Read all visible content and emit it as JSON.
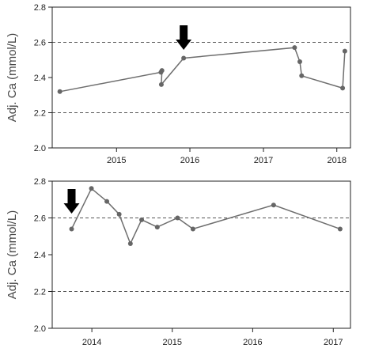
{
  "chart_data": [
    {
      "type": "line",
      "ylabel": "Adj. Ca (mmol/L)",
      "xlabel": "",
      "xlim": [
        "2014-02-15",
        "2018-03-10"
      ],
      "ylim": [
        2.0,
        2.8
      ],
      "x_ticks": [
        "2015-01-01",
        "2016-01-01",
        "2017-01-01",
        "2018-01-01"
      ],
      "x_tick_labels": [
        "2015",
        "2016",
        "2017",
        "2018"
      ],
      "y_ticks": [
        2.0,
        2.2,
        2.4,
        2.6,
        2.8
      ],
      "y_tick_labels": [
        "2.0",
        "2.2",
        "2.4",
        "2.6",
        "2.8"
      ],
      "reference_lines": [
        2.2,
        2.6
      ],
      "grid": false,
      "arrow_at": "2015-12-01",
      "series": [
        {
          "x": [
            "2014-03-25",
            "2015-08-10",
            "2015-08-15",
            "2015-08-12",
            "2015-12-01",
            "2017-06-05",
            "2017-07-01",
            "2017-07-10",
            "2018-01-30",
            "2018-02-10"
          ],
          "values": [
            2.32,
            2.43,
            2.44,
            2.36,
            2.51,
            2.57,
            2.49,
            2.41,
            2.34,
            2.55
          ]
        }
      ]
    },
    {
      "type": "line",
      "ylabel": "Adj. Ca (mmol/L)",
      "xlabel": "",
      "xlim": [
        "2013-07-05",
        "2017-03-20"
      ],
      "ylim": [
        2.0,
        2.8
      ],
      "x_ticks": [
        "2014-01-01",
        "2015-01-01",
        "2016-01-01",
        "2017-01-01"
      ],
      "x_tick_labels": [
        "2014",
        "2015",
        "2016",
        "2017"
      ],
      "y_ticks": [
        2.0,
        2.2,
        2.4,
        2.6,
        2.8
      ],
      "y_tick_labels": [
        "2.0",
        "2.2",
        "2.4",
        "2.6",
        "2.8"
      ],
      "reference_lines": [
        2.2,
        2.6
      ],
      "grid": false,
      "arrow_at": "2013-10-01",
      "series": [
        {
          "x": [
            "2013-10-01",
            "2013-12-30",
            "2014-03-10",
            "2014-05-05",
            "2014-06-25",
            "2014-08-15",
            "2014-10-25",
            "2015-01-25",
            "2015-04-05",
            "2016-04-05",
            "2017-02-01"
          ],
          "values": [
            2.54,
            2.76,
            2.69,
            2.62,
            2.46,
            2.59,
            2.55,
            2.6,
            2.54,
            2.67,
            2.54
          ]
        }
      ]
    }
  ]
}
